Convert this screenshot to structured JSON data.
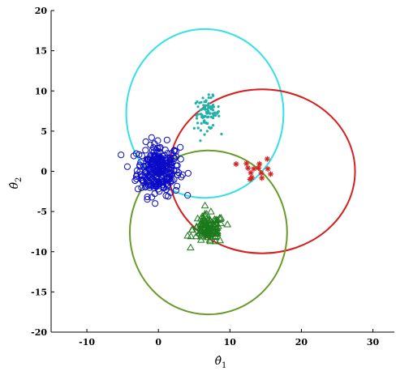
{
  "chart_data": {
    "type": "scatter",
    "title": "",
    "xlabel": "θ̂",
    "xlabel_sub": "1",
    "ylabel": "θ̂",
    "ylabel_sub": "2",
    "xlim": [
      -15,
      33
    ],
    "ylim": [
      -20,
      20
    ],
    "x_ticks": [
      -10,
      0,
      10,
      20,
      30
    ],
    "y_ticks": [
      -20,
      -15,
      -10,
      -5,
      0,
      5,
      10,
      15,
      20
    ],
    "grid": false,
    "legend": "none",
    "ellipses": [
      {
        "color": "#33e0e6",
        "cx": 6.5,
        "cy": 7.2,
        "rx": 11.0,
        "ry": 10.5
      },
      {
        "color": "#d62020",
        "cx": 14.5,
        "cy": 0.0,
        "rx": 13.0,
        "ry": 10.2
      },
      {
        "color": "#6a9a2a",
        "cx": 7.0,
        "cy": -7.6,
        "rx": 11.0,
        "ry": 10.2
      }
    ],
    "clusters": [
      {
        "marker": "circle",
        "color": "#0a0ac8",
        "center": [
          0.0,
          0.2
        ],
        "spread": [
          1.5,
          1.6
        ],
        "count": 260
      },
      {
        "marker": "dot",
        "color": "#20b2aa",
        "center": [
          6.8,
          7.2
        ],
        "spread": [
          0.9,
          1.0
        ],
        "count": 90
      },
      {
        "marker": "triangle",
        "color": "#1b7a1b",
        "center": [
          7.0,
          -7.2
        ],
        "spread": [
          1.1,
          0.9
        ],
        "count": 110
      },
      {
        "marker": "star",
        "color": "#d62020",
        "center": [
          14.0,
          0.2
        ],
        "spread": [
          1.1,
          0.7
        ],
        "count": 14
      }
    ]
  }
}
